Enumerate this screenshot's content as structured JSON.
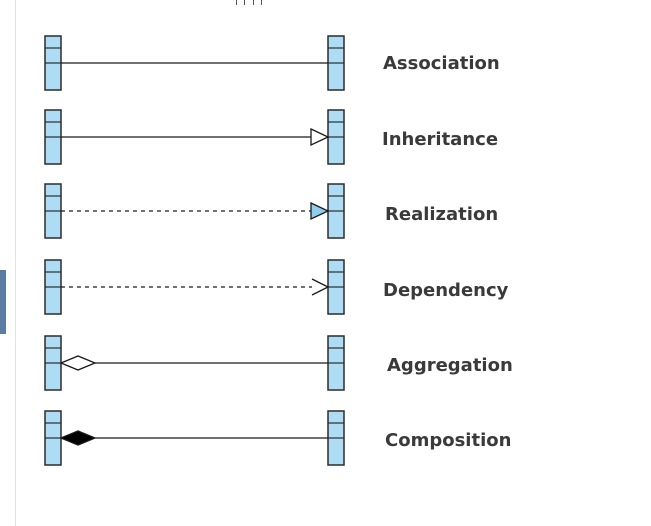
{
  "relationships": [
    {
      "label": "Association",
      "line": "solid",
      "source_end": "none",
      "target_end": "none"
    },
    {
      "label": "Inheritance",
      "line": "solid",
      "source_end": "none",
      "target_end": "hollow-triangle"
    },
    {
      "label": "Realization",
      "line": "dashed",
      "source_end": "none",
      "target_end": "filled-blue-triangle"
    },
    {
      "label": "Dependency",
      "line": "dashed",
      "source_end": "none",
      "target_end": "open-arrow"
    },
    {
      "label": "Aggregation",
      "line": "solid",
      "source_end": "hollow-diamond",
      "target_end": "none"
    },
    {
      "label": "Composition",
      "line": "solid",
      "source_end": "filled-diamond",
      "target_end": "none"
    }
  ],
  "colors": {
    "class_fill": "#aedcf5",
    "class_stroke": "#2c2c2c",
    "line": "#1a1a1a",
    "realization_fill": "#8fcdf0",
    "label": "#3a3a3a"
  }
}
